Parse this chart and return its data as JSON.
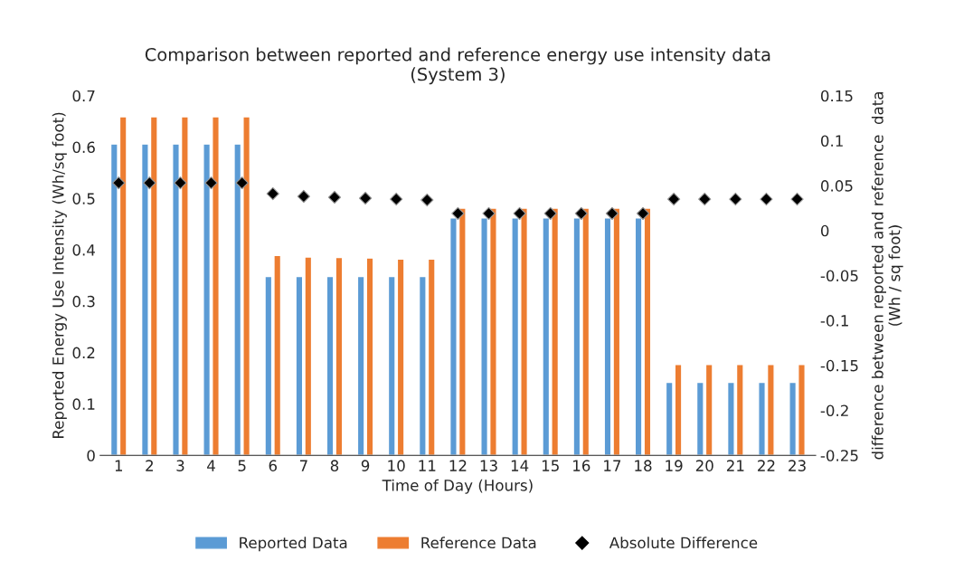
{
  "chart_data": {
    "type": "bar",
    "title": "Comparison between reported and reference energy use intensity data\n(System 3)",
    "xlabel": "Time of Day (Hours)",
    "ylabel": "Reported Energy Use Intensity (Wh/sq foot)",
    "y2label": "difference between reported and reference  data\n(Wh / sq foot)",
    "categories": [
      "1",
      "2",
      "3",
      "4",
      "5",
      "6",
      "7",
      "8",
      "9",
      "10",
      "11",
      "12",
      "13",
      "14",
      "15",
      "16",
      "17",
      "18",
      "19",
      "20",
      "21",
      "22",
      "23"
    ],
    "series": [
      {
        "name": "Reported Data",
        "color": "#5b9bd5",
        "values": [
          0.606,
          0.606,
          0.606,
          0.606,
          0.606,
          0.348,
          0.348,
          0.348,
          0.348,
          0.348,
          0.348,
          0.462,
          0.462,
          0.462,
          0.462,
          0.462,
          0.462,
          0.462,
          0.142,
          0.142,
          0.142,
          0.142,
          0.142
        ]
      },
      {
        "name": "Reference Data",
        "color": "#ed7d31",
        "values": [
          0.659,
          0.659,
          0.659,
          0.659,
          0.659,
          0.389,
          0.386,
          0.385,
          0.384,
          0.382,
          0.382,
          0.481,
          0.481,
          0.481,
          0.481,
          0.481,
          0.481,
          0.481,
          0.177,
          0.177,
          0.177,
          0.177,
          0.177
        ]
      },
      {
        "name": "Absolute Difference",
        "type": "scatter",
        "axis": "y2",
        "marker": "diamond",
        "color": "#000000",
        "values": [
          0.053,
          0.053,
          0.053,
          0.053,
          0.053,
          0.041,
          0.038,
          0.037,
          0.036,
          0.035,
          0.034,
          0.019,
          0.019,
          0.019,
          0.019,
          0.019,
          0.019,
          0.019,
          0.035,
          0.035,
          0.035,
          0.035,
          0.035
        ]
      }
    ],
    "ylim": [
      0,
      0.7
    ],
    "yticks": [
      0,
      0.1,
      0.2,
      0.3,
      0.4,
      0.5,
      0.6,
      0.7
    ],
    "y2lim": [
      -0.25,
      0.15
    ],
    "y2ticks": [
      -0.25,
      -0.2,
      -0.15,
      -0.1,
      -0.05,
      0,
      0.05,
      0.1,
      0.15
    ],
    "grid": false,
    "legend": "bottom"
  }
}
